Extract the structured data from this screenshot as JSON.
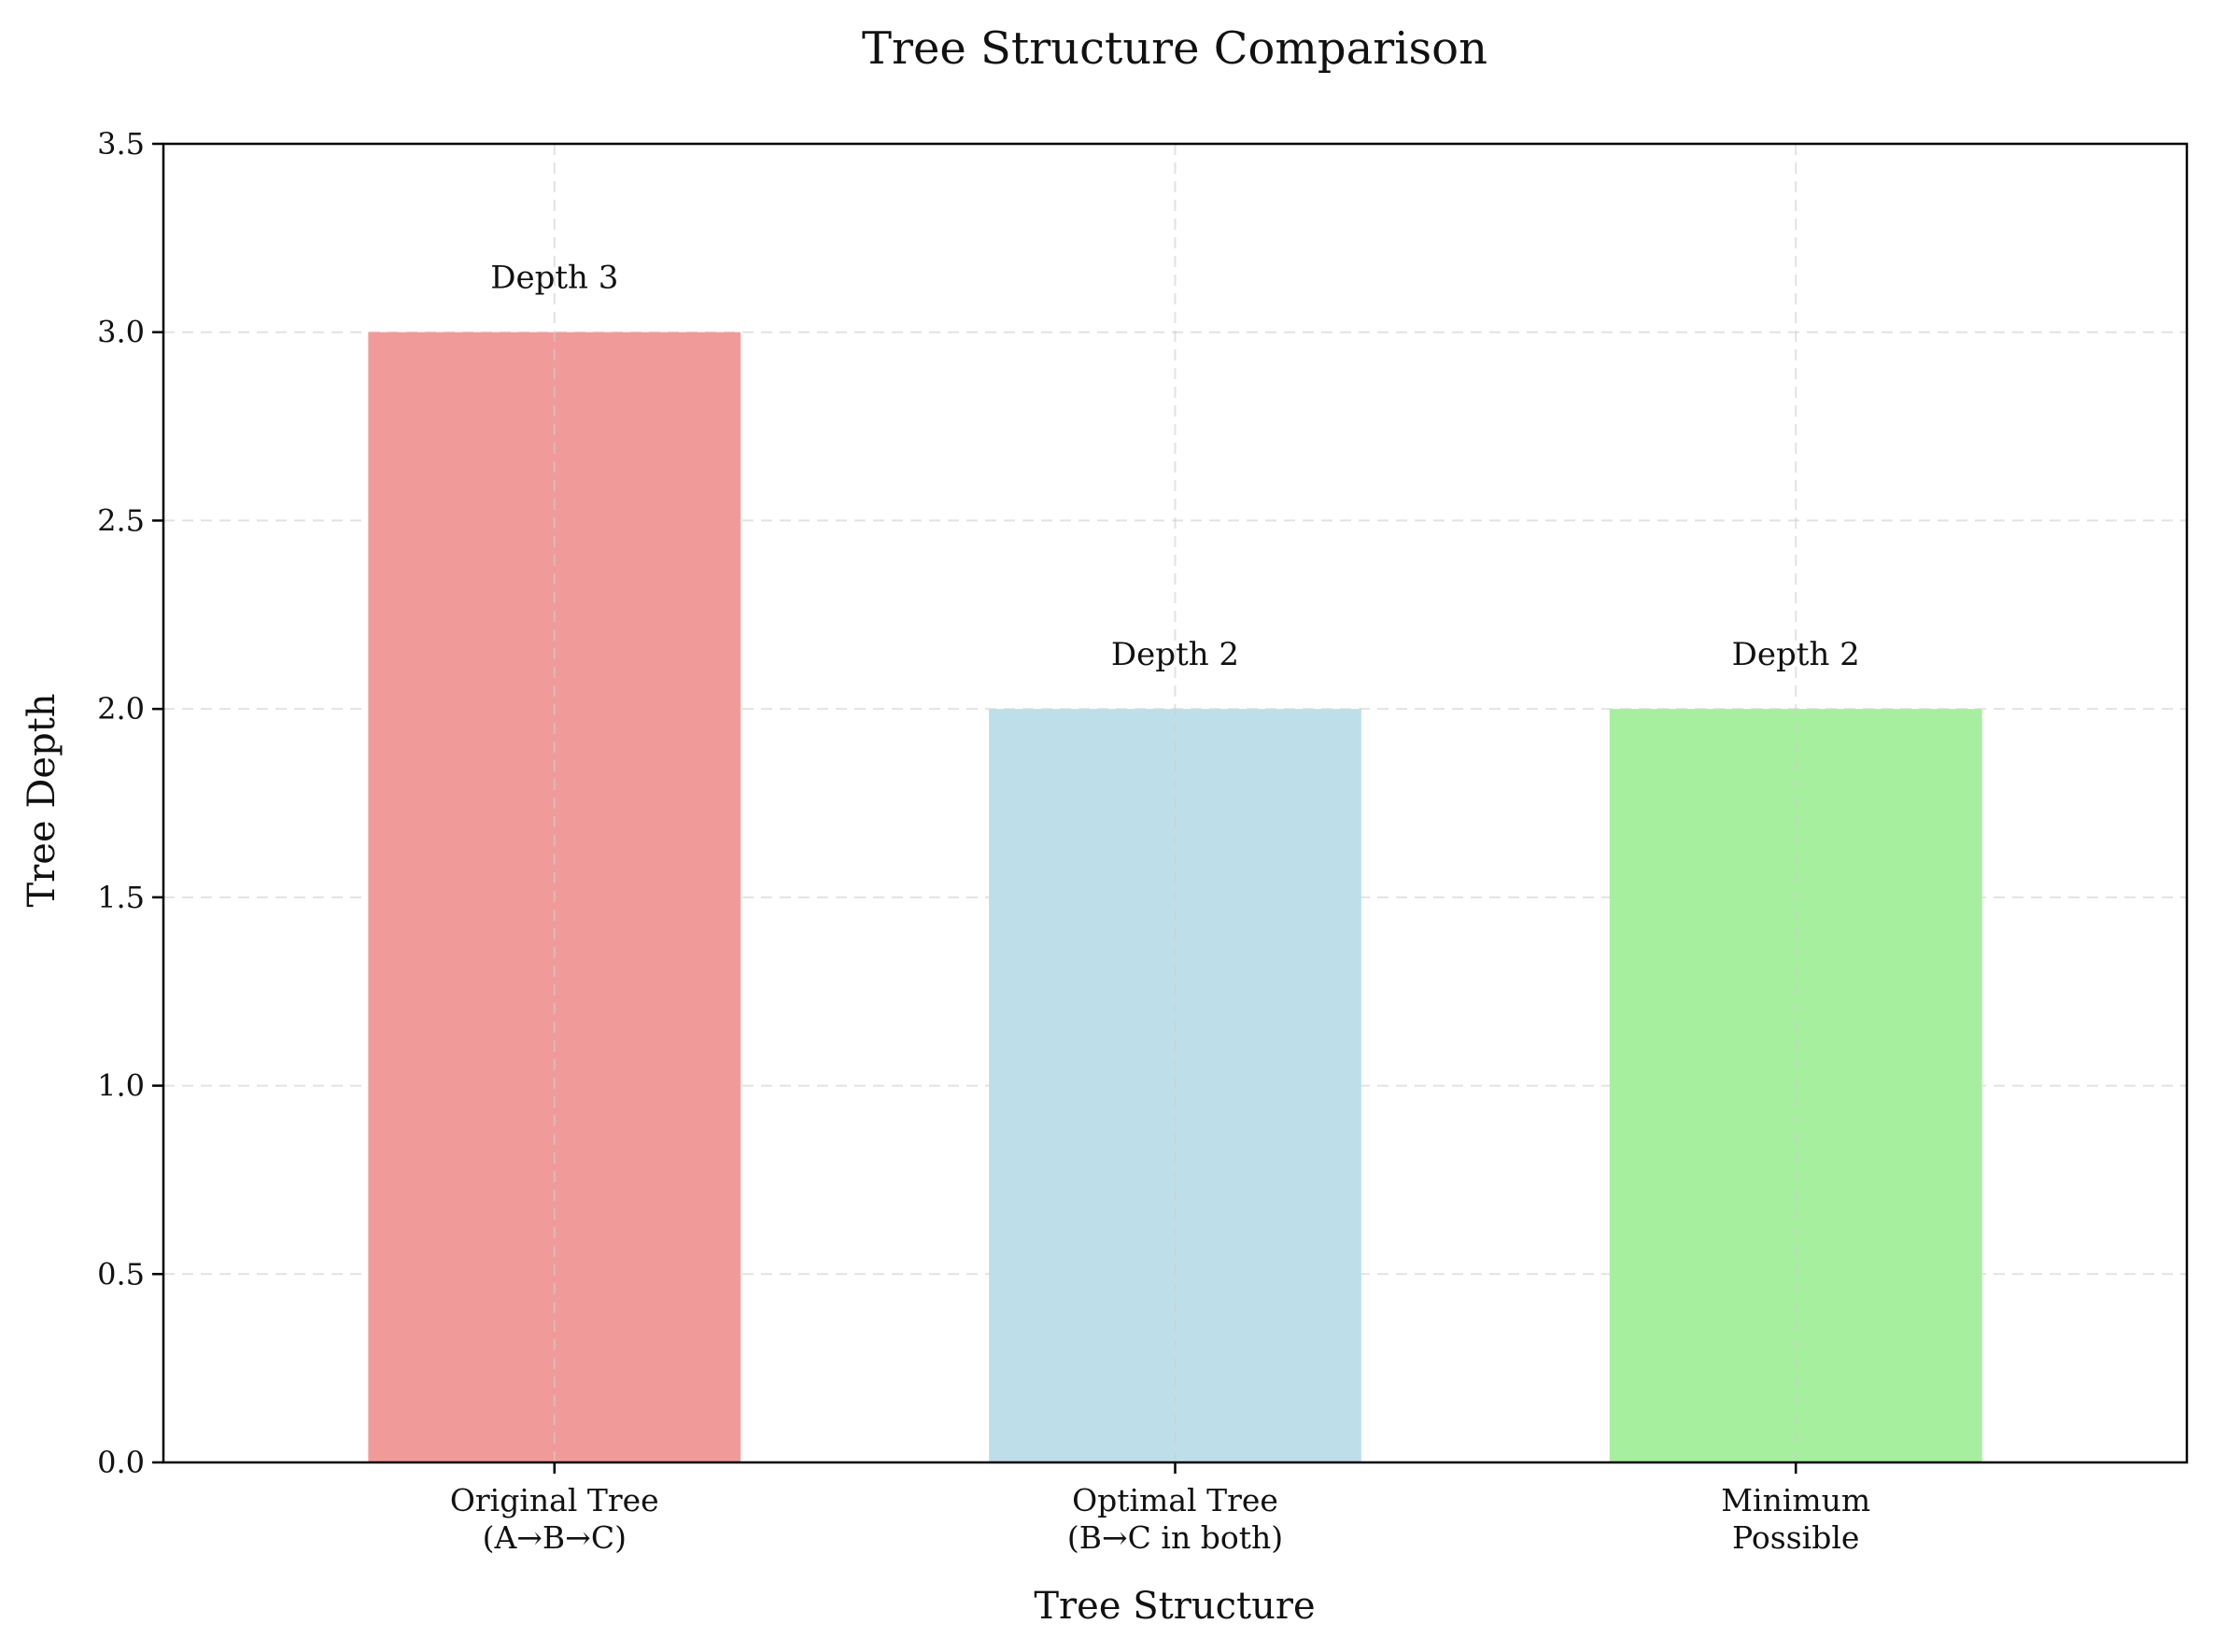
{
  "chart_data": {
    "type": "bar",
    "title": "Tree Structure Comparison",
    "xlabel": "Tree Structure",
    "ylabel": "Tree Depth",
    "categories": [
      [
        "Original Tree",
        "(A→B→C)"
      ],
      [
        "Optimal Tree",
        "(B→C in both)"
      ],
      [
        "Minimum",
        "Possible"
      ]
    ],
    "values": [
      3,
      2,
      2
    ],
    "bar_labels": [
      "Depth 3",
      "Depth 2",
      "Depth 2"
    ],
    "colors": [
      "#f19a9a",
      "#bedfe9",
      "#a6ef9f"
    ],
    "ylim": [
      0,
      3.5
    ],
    "yticks": [
      0.0,
      0.5,
      1.0,
      1.5,
      2.0,
      2.5,
      3.0,
      3.5
    ],
    "ytick_labels": [
      "0.0",
      "0.5",
      "1.0",
      "1.5",
      "2.0",
      "2.5",
      "3.0",
      "3.5"
    ],
    "grid": true
  }
}
